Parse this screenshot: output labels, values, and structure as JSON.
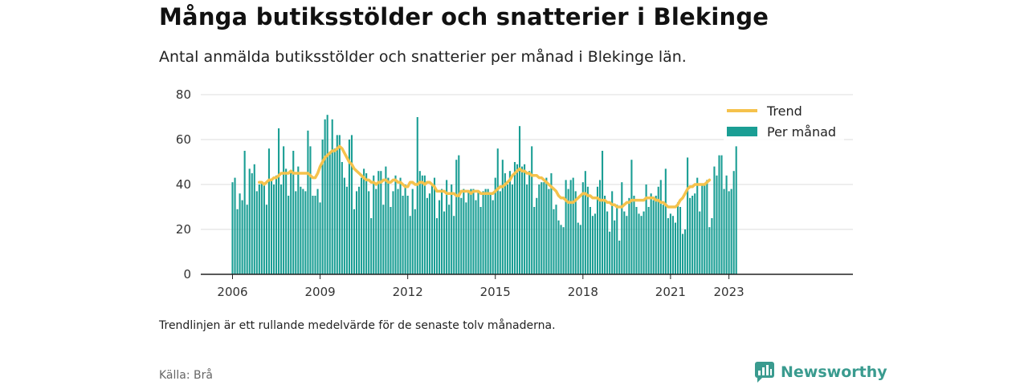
{
  "title": "Många butiksstölder och snatterier i Blekinge",
  "subtitle": "Antal anmälda butiksstölder och snatterier per månad i Blekinge län.",
  "footnote": "Trendlinjen är ett rullande medelvärde för de senaste tolv månaderna.",
  "source": "Källa: Brå",
  "brand": "Newsworthy",
  "colors": {
    "bar": "#1a9e94",
    "trend": "#f5c24c",
    "axis": "#222222",
    "grid": "#dddddd"
  },
  "chart_data": {
    "type": "bar",
    "title": "",
    "xlabel": "",
    "ylabel": "",
    "ylim": [
      0,
      80
    ],
    "yticks": [
      0,
      20,
      40,
      60,
      80
    ],
    "xticks": [
      "2006",
      "2009",
      "2012",
      "2015",
      "2018",
      "2021",
      "2023"
    ],
    "legend": {
      "position": "top-right",
      "entries": [
        "Trend",
        "Per månad"
      ]
    },
    "grid": true,
    "start_month": "2006-01",
    "series": [
      {
        "name": "Per månad",
        "type": "bar",
        "values": [
          41,
          43,
          29,
          36,
          33,
          55,
          31,
          47,
          45,
          49,
          37,
          40,
          41,
          40,
          31,
          56,
          42,
          40,
          44,
          65,
          40,
          57,
          47,
          35,
          46,
          55,
          37,
          48,
          39,
          38,
          37,
          64,
          57,
          35,
          35,
          38,
          32,
          60,
          69,
          71,
          54,
          69,
          56,
          62,
          62,
          50,
          43,
          39,
          60,
          62,
          29,
          37,
          39,
          43,
          47,
          45,
          37,
          25,
          44,
          38,
          46,
          46,
          31,
          48,
          43,
          30,
          37,
          44,
          38,
          43,
          35,
          40,
          35,
          26,
          38,
          29,
          70,
          46,
          44,
          44,
          34,
          36,
          40,
          43,
          25,
          33,
          38,
          28,
          42,
          31,
          40,
          26,
          51,
          53,
          34,
          38,
          32,
          37,
          38,
          38,
          33,
          37,
          30,
          37,
          38,
          38,
          36,
          33,
          43,
          56,
          37,
          51,
          45,
          40,
          46,
          40,
          50,
          49,
          66,
          48,
          49,
          40,
          46,
          57,
          30,
          34,
          40,
          41,
          41,
          43,
          38,
          45,
          29,
          31,
          24,
          22,
          21,
          42,
          38,
          42,
          43,
          37,
          23,
          22,
          41,
          46,
          39,
          30,
          26,
          27,
          39,
          42,
          55,
          35,
          28,
          19,
          37,
          24,
          31,
          15,
          41,
          28,
          26,
          34,
          51,
          35,
          30,
          27,
          26,
          28,
          40,
          30,
          36,
          33,
          35,
          39,
          42,
          31,
          47,
          25,
          27,
          26,
          23,
          32,
          30,
          18,
          20,
          52,
          34,
          35,
          36,
          43,
          28,
          40,
          40,
          42,
          21,
          25,
          48,
          44,
          53,
          53,
          38,
          44,
          37,
          38,
          46,
          57
        ]
      },
      {
        "name": "Trend",
        "type": "line",
        "start_index": 11,
        "values": [
          41,
          41,
          40,
          41,
          42,
          42,
          43,
          43,
          44,
          45,
          45,
          45,
          45,
          46,
          45,
          45,
          45,
          45,
          45,
          45,
          45,
          44,
          43,
          43,
          45,
          48,
          50,
          52,
          53,
          54,
          55,
          55,
          56,
          57,
          56,
          54,
          52,
          50,
          49,
          47,
          46,
          45,
          44,
          43,
          42,
          42,
          41,
          41,
          40,
          41,
          41,
          42,
          42,
          41,
          41,
          42,
          42,
          41,
          41,
          40,
          39,
          39,
          41,
          41,
          40,
          40,
          41,
          41,
          40,
          41,
          41,
          40,
          39,
          37,
          37,
          37,
          37,
          36,
          36,
          36,
          36,
          35,
          35,
          37,
          37,
          37,
          37,
          36,
          37,
          37,
          37,
          36,
          36,
          36,
          36,
          36,
          36,
          37,
          38,
          39,
          39,
          40,
          41,
          42,
          44,
          45,
          46,
          47,
          46,
          46,
          45,
          45,
          44,
          44,
          44,
          43,
          43,
          42,
          41,
          40,
          39,
          38,
          37,
          35,
          34,
          34,
          33,
          32,
          32,
          32,
          33,
          34,
          35,
          36,
          36,
          35,
          35,
          34,
          34,
          34,
          33,
          33,
          33,
          32,
          32,
          31,
          31,
          30,
          30,
          30,
          31,
          32,
          32,
          33,
          33,
          33,
          33,
          33,
          33,
          34,
          34,
          34,
          34,
          33,
          33,
          32,
          32,
          31,
          30,
          30,
          30,
          30,
          31,
          33,
          34,
          36,
          38,
          39,
          39,
          40,
          40,
          40,
          40,
          40,
          41,
          42
        ]
      }
    ]
  }
}
